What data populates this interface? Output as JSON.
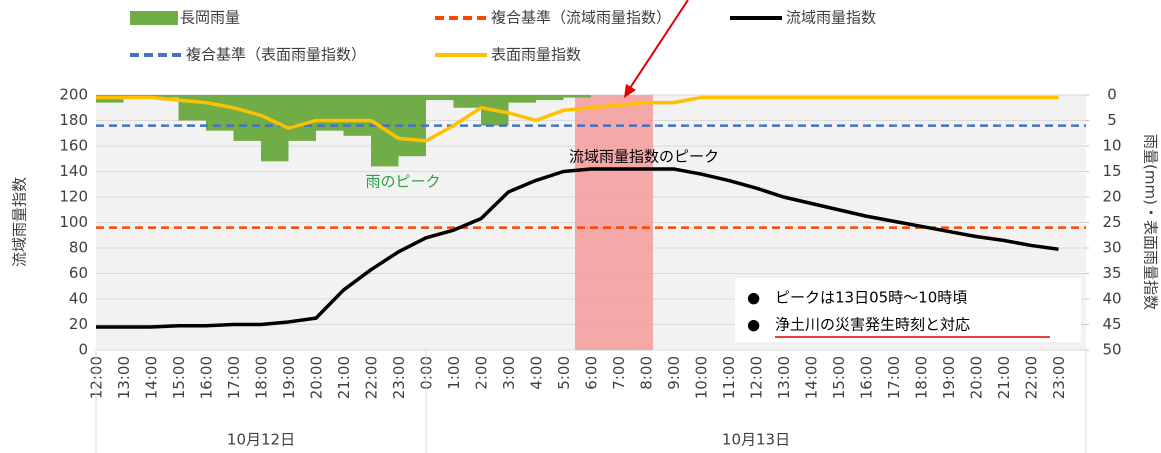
{
  "chart_data": {
    "type": "combo",
    "categories": [
      "12:00",
      "13:00",
      "14:00",
      "15:00",
      "16:00",
      "17:00",
      "18:00",
      "19:00",
      "20:00",
      "21:00",
      "22:00",
      "23:00",
      "0:00",
      "1:00",
      "2:00",
      "3:00",
      "4:00",
      "5:00",
      "6:00",
      "7:00",
      "8:00",
      "9:00",
      "10:00",
      "11:00",
      "12:00",
      "13:00",
      "14:00",
      "15:00",
      "16:00",
      "17:00",
      "18:00",
      "19:00",
      "20:00",
      "21:00",
      "22:00",
      "23:00"
    ],
    "x_groups": [
      "10月12日",
      "10月13日"
    ],
    "series": [
      {
        "name": "長岡雨量",
        "kind": "bar",
        "axis": "y2",
        "color": "#70ad47",
        "values": [
          1.5,
          0.5,
          0.5,
          5,
          7,
          9,
          13,
          9,
          7,
          8,
          14,
          12,
          1,
          2.5,
          6,
          1.5,
          1,
          0.5,
          0,
          0,
          0,
          0,
          0,
          0,
          0,
          0,
          0,
          0,
          0,
          0,
          0,
          0,
          0,
          0,
          0,
          0
        ]
      },
      {
        "name": "複合基準（流域雨量指数）",
        "kind": "hline",
        "color": "#ff4500",
        "value": 96
      },
      {
        "name": "流域雨量指数",
        "kind": "line",
        "color": "#000000",
        "values": [
          18,
          18,
          18,
          19,
          19,
          20,
          20,
          22,
          25,
          47,
          63,
          77,
          88,
          94,
          103,
          124,
          133,
          140,
          142,
          142,
          142,
          142,
          138,
          133,
          127,
          120,
          115,
          110,
          105,
          101,
          97,
          93,
          89,
          86,
          82,
          79
        ]
      },
      {
        "name": "複合基準（表面雨量指数）",
        "kind": "hline",
        "axis": "y2",
        "color": "#4472c4",
        "value": 6
      },
      {
        "name": "表面雨量指数",
        "kind": "line",
        "axis": "y2",
        "color": "#ffc000",
        "values": [
          0.5,
          0.5,
          0.5,
          1,
          1.5,
          2.5,
          4,
          6.5,
          5,
          5,
          5,
          8.5,
          9,
          6,
          2.5,
          3.5,
          5,
          3,
          2.5,
          2,
          1.5,
          1.5,
          0.5,
          0.5,
          0.5,
          0.5,
          0.5,
          0.5,
          0.5,
          0.5,
          0.5,
          0.5,
          0.5,
          0.5,
          0.5,
          0.5
        ]
      }
    ],
    "ylim": [
      0,
      200
    ],
    "yticks": [
      0,
      20,
      40,
      60,
      80,
      100,
      120,
      140,
      160,
      180,
      200
    ],
    "y2lim": [
      0,
      50
    ],
    "y2_reversed": true,
    "y2ticks": [
      0,
      5,
      10,
      15,
      20,
      25,
      30,
      35,
      40,
      45,
      50
    ],
    "ylabel": "流域雨量指数",
    "y2label": "雨量(mm)・表面雨量指数",
    "grid": true,
    "annotations": [
      "流域雨量指数のピーク",
      "雨のピーク"
    ],
    "notes": [
      "ピークは13日05時～10時頃",
      "浄土川の災害発生時刻と対応"
    ]
  }
}
